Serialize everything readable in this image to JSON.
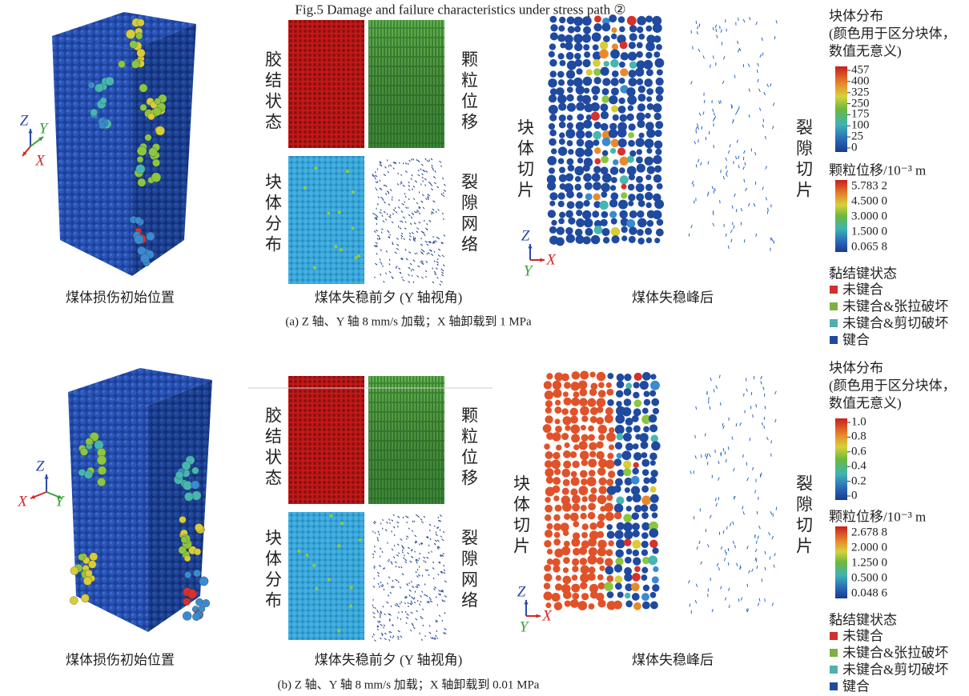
{
  "title": "Fig.5    Damage and failure characteristics under stress path ②",
  "panels": [
    {
      "caption": "(a) Z 轴、Y 轴 8 mm/s 加载；X 轴卸载到 1 MPa",
      "views": [
        "煤体损伤初始位置",
        "煤体失稳前夕 (Y 轴视角)",
        "煤体失稳峰后"
      ],
      "image_labels": [
        "胶结状态",
        "颗粒位移",
        "块体分布",
        "裂隙网络",
        "块体切片",
        "裂隙切片"
      ],
      "cube_axes": [
        "Z",
        "Y",
        "X"
      ],
      "slice_axes": [
        "Z",
        "Y",
        "X"
      ],
      "legend": {
        "block_title": [
          "块体分布",
          "(颜色用于区分块体，",
          "数值无意义)"
        ],
        "block_ticks": [
          "457",
          "400",
          "325",
          "250",
          "175",
          "100",
          "25",
          "0"
        ],
        "displacement_title": "颗粒位移/10⁻³ m",
        "displacement_ticks": [
          "5.783 2",
          "4.500 0",
          "3.000 0",
          "1.500 0",
          "0.065 8"
        ],
        "bond_title": "黏结键状态",
        "bond_states": [
          "未键合",
          "未键合&张拉破坏",
          "未键合&剪切破坏",
          "键合"
        ]
      }
    },
    {
      "caption": "(b) Z 轴、Y 轴 8 mm/s 加载；X 轴卸载到 0.01 MPa",
      "views": [
        "煤体损伤初始位置",
        "煤体失稳前夕 (Y 轴视角)",
        "煤体失稳峰后"
      ],
      "image_labels": [
        "胶结状态",
        "颗粒位移",
        "块体分布",
        "裂隙网络",
        "块体切片",
        "裂隙切片"
      ],
      "cube_axes": [
        "Z",
        "X",
        "Y"
      ],
      "slice_axes": [
        "Z",
        "Y",
        "X"
      ],
      "legend": {
        "block_title": [
          "块体分布",
          "(颜色用于区分块体，",
          "数值无意义)"
        ],
        "block_ticks": [
          "1.0",
          "0.8",
          "0.6",
          "0.4",
          "0.2",
          "0"
        ],
        "displacement_title": "颗粒位移/10⁻³ m",
        "displacement_ticks": [
          "2.678 8",
          "2.000 0",
          "1.250 0",
          "0.500 0",
          "0.048 6"
        ],
        "bond_title": "黏结键状态",
        "bond_states": [
          "未键合",
          "未键合&张拉破坏",
          "未键合&剪切破坏",
          "键合"
        ]
      }
    }
  ]
}
